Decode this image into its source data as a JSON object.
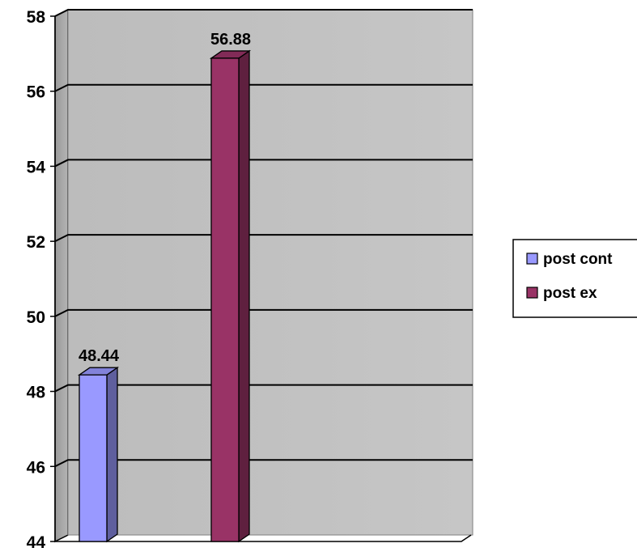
{
  "chart_data": {
    "type": "bar",
    "style": "3d-column",
    "title": "",
    "xlabel": "",
    "ylabel": "",
    "ylim": [
      44,
      58
    ],
    "ytick_step": 2,
    "yticks": [
      "44",
      "46",
      "48",
      "50",
      "52",
      "54",
      "56",
      "58"
    ],
    "grid": true,
    "legend_position": "right",
    "series": [
      {
        "name": "post cont",
        "value": 48.44,
        "label": "48.44",
        "color": "#9999ff"
      },
      {
        "name": "post ex",
        "value": 56.88,
        "label": "56.88",
        "color": "#993366"
      }
    ],
    "colors": {
      "plot_wall": "#c0c0c0",
      "floor": "#a6a6a6",
      "gridline": "#000000"
    }
  }
}
